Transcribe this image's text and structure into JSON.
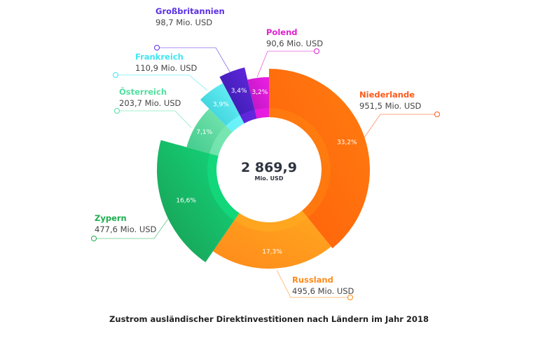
{
  "chart_data": {
    "type": "pie",
    "variant": "donut",
    "title": "Zustrom ausländischer Direktinvestitionen nach Ländern im Jahr 2018",
    "total": {
      "value": "2 869,9",
      "unit": "Mio. USD"
    },
    "slices": [
      {
        "name": "Niederlande",
        "value": 951.5,
        "value_label": "951,5 Mio. USD",
        "percent_label": "33,2%",
        "color": "#ff5f0a",
        "color2": "#ff7d10",
        "label_color": "#ff5a1a"
      },
      {
        "name": "Russland",
        "value": 495.6,
        "value_label": "495,6 Mio. USD",
        "percent_label": "17,3%",
        "color": "#ff8a1a",
        "color2": "#ffa820",
        "label_color": "#ff8a1a"
      },
      {
        "name": "Zypern",
        "value": 477.6,
        "value_label": "477,6 Mio. USD",
        "percent_label": "16,6%",
        "color": "#1a9a52",
        "color2": "#12dc7e",
        "label_color": "#1fae50"
      },
      {
        "name": "Österreich",
        "value": 203.7,
        "value_label": "203,7 Mio. USD",
        "percent_label": "7,1%",
        "color": "#3fc98a",
        "color2": "#7ee8b4",
        "label_color": "#52e0a0"
      },
      {
        "name": "Frankreich",
        "value": 110.9,
        "value_label": "110,9 Mio. USD",
        "percent_label": "3,9%",
        "color": "#2cc6cf",
        "color2": "#74f8ff",
        "label_color": "#40e6f0"
      },
      {
        "name": "Großbritannien",
        "value": 98.7,
        "value_label": "98,7 Mio. USD",
        "percent_label": "3,4%",
        "color": "#2a1a9e",
        "color2": "#6a28e6",
        "label_color": "#5a2ee6"
      },
      {
        "name": "Polend",
        "value": 90.6,
        "value_label": "90,6 Mio. USD",
        "percent_label": "3,2%",
        "color": "#b316b8",
        "color2": "#ee1ee6",
        "label_color": "#e020d0"
      }
    ]
  }
}
